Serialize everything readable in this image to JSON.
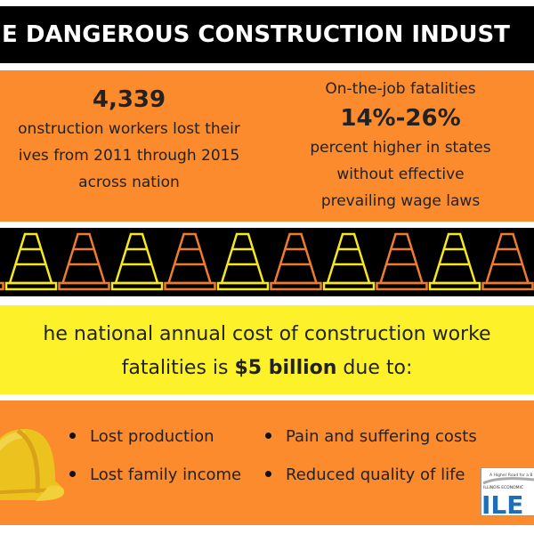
{
  "banner": {
    "title": "E DANGEROUS CONSTRUCTION INDUST"
  },
  "stats": {
    "left": {
      "number": "4,339",
      "line1": "onstruction workers lost their",
      "line2": "ives from 2011 through 2015",
      "line3": "across nation"
    },
    "right": {
      "heading": "On-the-job fatalities",
      "number": "14%-26%",
      "line1": "percent higher in states",
      "line2": "without effective",
      "line3": "prevailing wage laws"
    }
  },
  "cost": {
    "line1": "he national annual cost of construction worke",
    "line2_pre": "fatalities is ",
    "line2_bold": "$5 billion",
    "line2_post": " due to:"
  },
  "bullets": [
    "Lost production",
    "Lost family income",
    "Pain and suffering costs",
    "Reduced quality of life"
  ],
  "logo": {
    "tagline": "A Higher Road for a B",
    "org": "ILLINOIS ECONOMIC",
    "acronym": "ILE"
  },
  "colors": {
    "orange": "#fb8b2c",
    "yellow": "#fdf229",
    "black": "#000000",
    "cone_yellow": "#f5e81c",
    "cone_orange": "#ee7c2e"
  },
  "icons": {
    "cone": "traffic-cone-icon",
    "hat": "hard-hat-icon"
  }
}
